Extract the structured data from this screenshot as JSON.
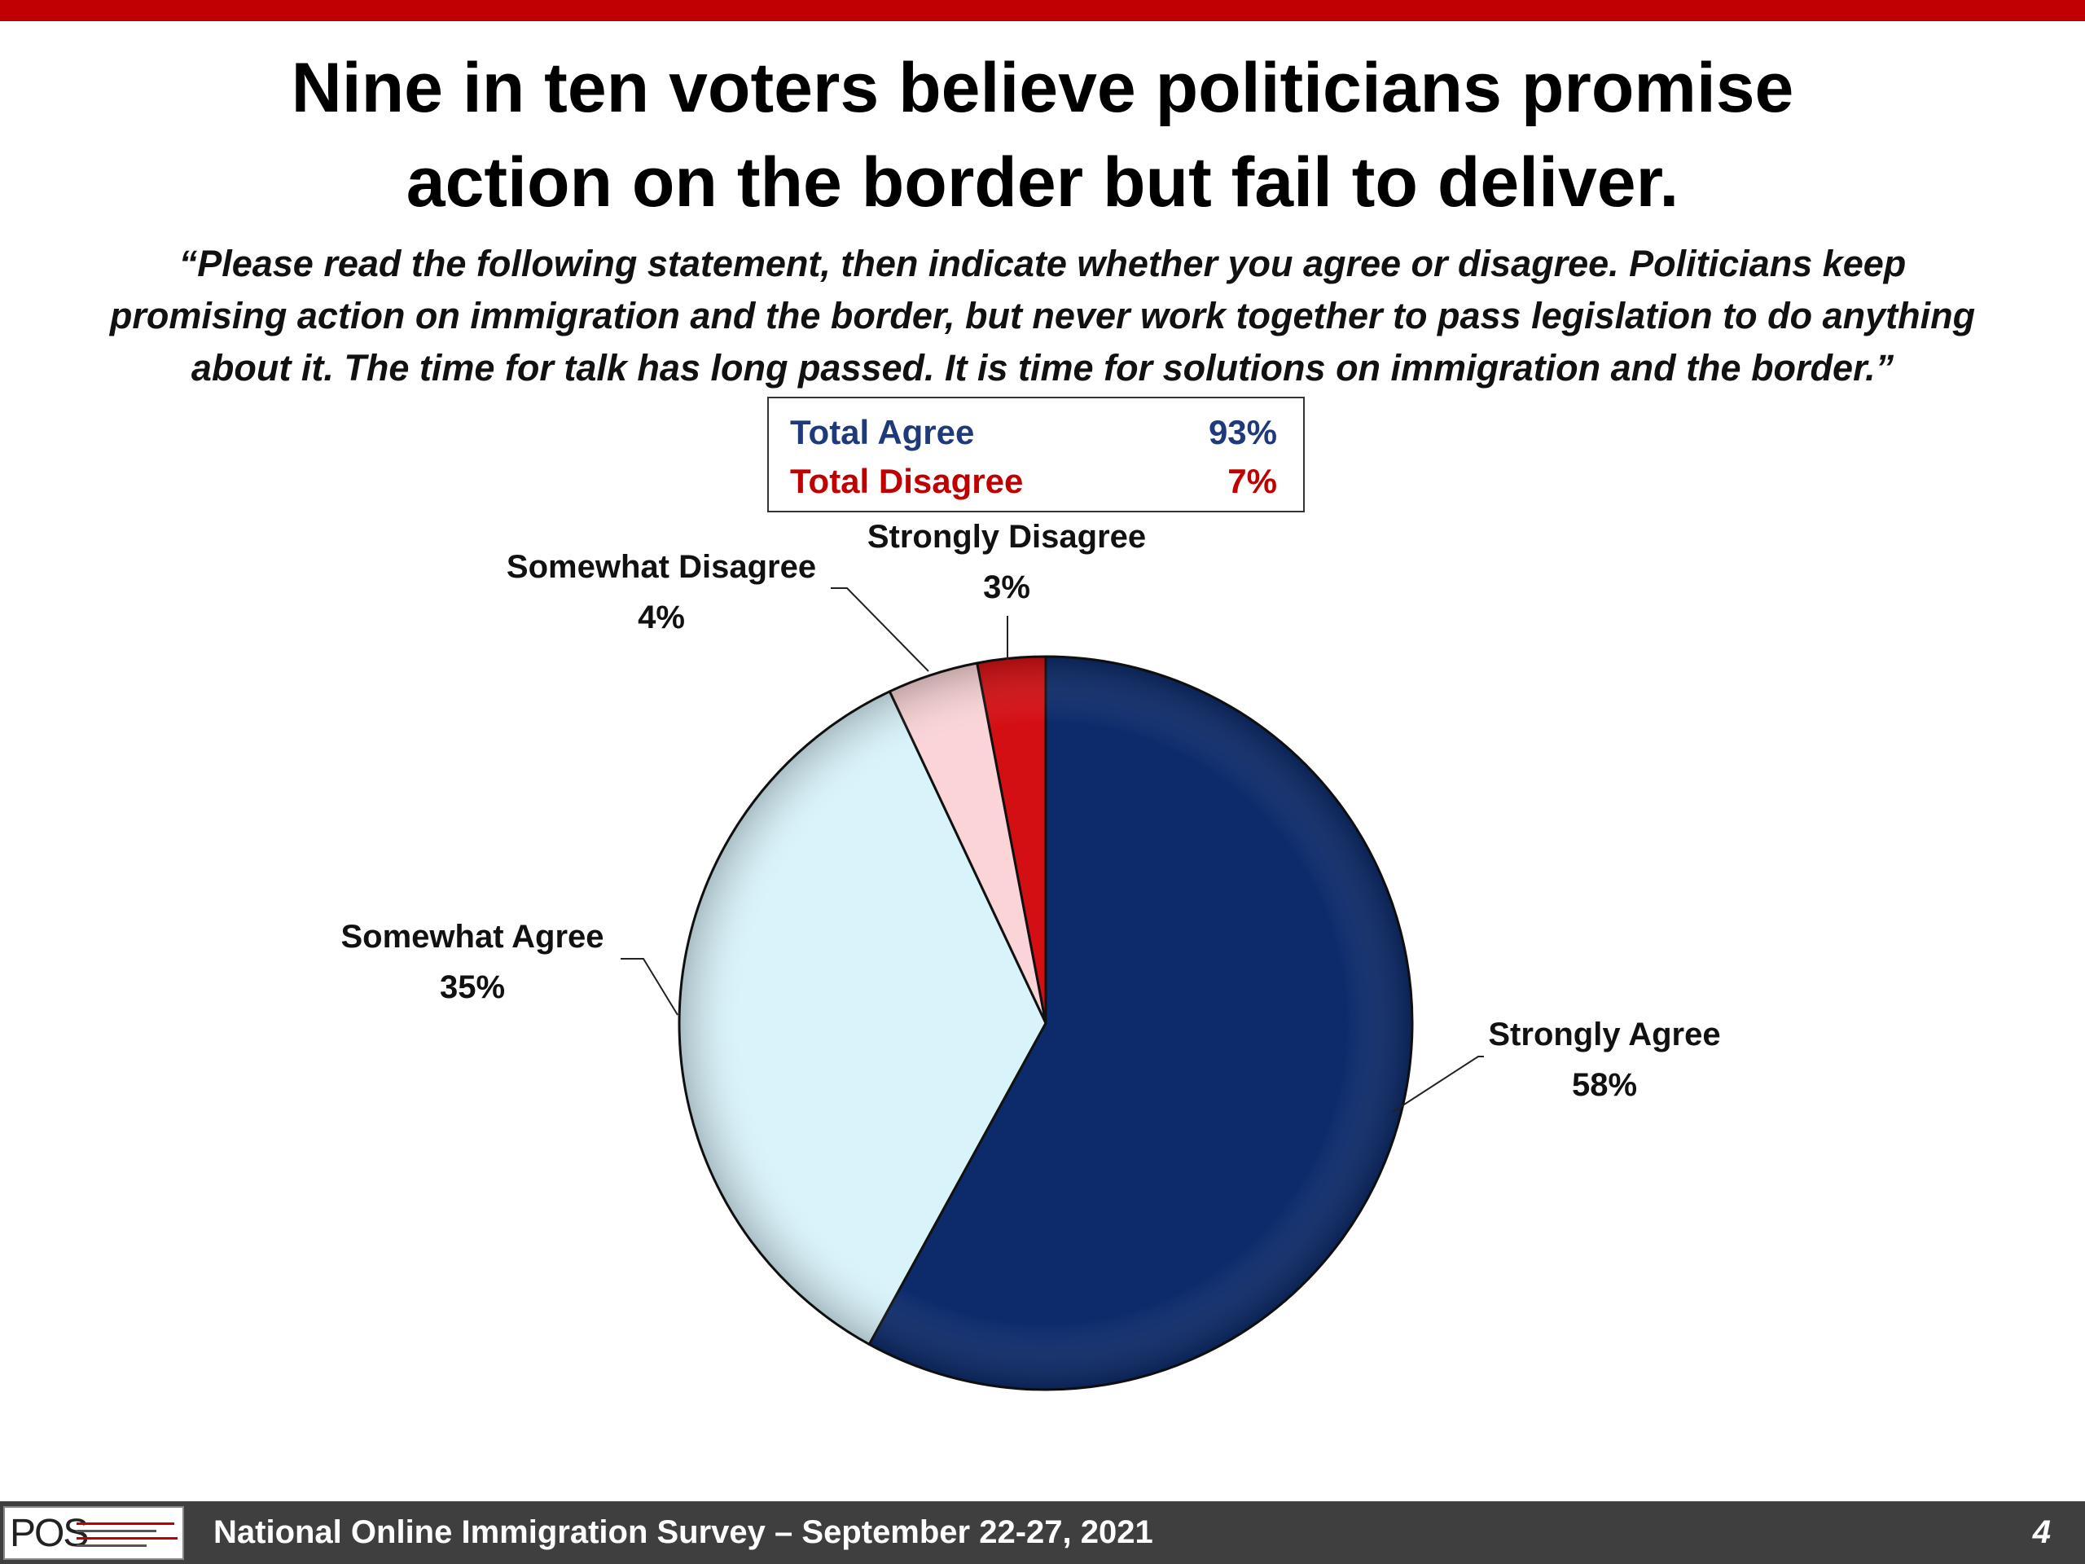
{
  "colors": {
    "top_bar": "#c00000",
    "footer_bg": "#3f3f3f",
    "agree_text": "#1f3a7a",
    "disagree_text": "#c00000"
  },
  "title_lines": [
    "Nine in ten voters believe politicians promise",
    "action on the border but fail to deliver."
  ],
  "question_lines": [
    "“Please read the following statement, then indicate whether you agree or disagree. Politicians keep",
    "promising action on immigration and the border, but never work together to pass legislation to do anything",
    "about it. The time for talk has long passed. It is time for solutions on immigration and the border.”"
  ],
  "summary": {
    "agree_label": "Total Agree",
    "agree_value": "93%",
    "disagree_label": "Total Disagree",
    "disagree_value": "7%"
  },
  "chart_data": {
    "type": "pie",
    "start_angle_deg": 0,
    "direction": "clockwise",
    "slices": [
      {
        "label": "Strongly Agree",
        "value": 58,
        "display": "58%",
        "color": "#0d2b6b"
      },
      {
        "label": "Somewhat Agree",
        "value": 35,
        "display": "35%",
        "color": "#d9f3fb"
      },
      {
        "label": "Somewhat Disagree",
        "value": 4,
        "display": "4%",
        "color": "#fad4d6"
      },
      {
        "label": "Strongly Disagree",
        "value": 3,
        "display": "3%",
        "color": "#d40f14"
      }
    ]
  },
  "footer": {
    "logo_text": "POS",
    "text": "National Online Immigration Survey – September 22-27, 2021",
    "page_number": "4"
  }
}
